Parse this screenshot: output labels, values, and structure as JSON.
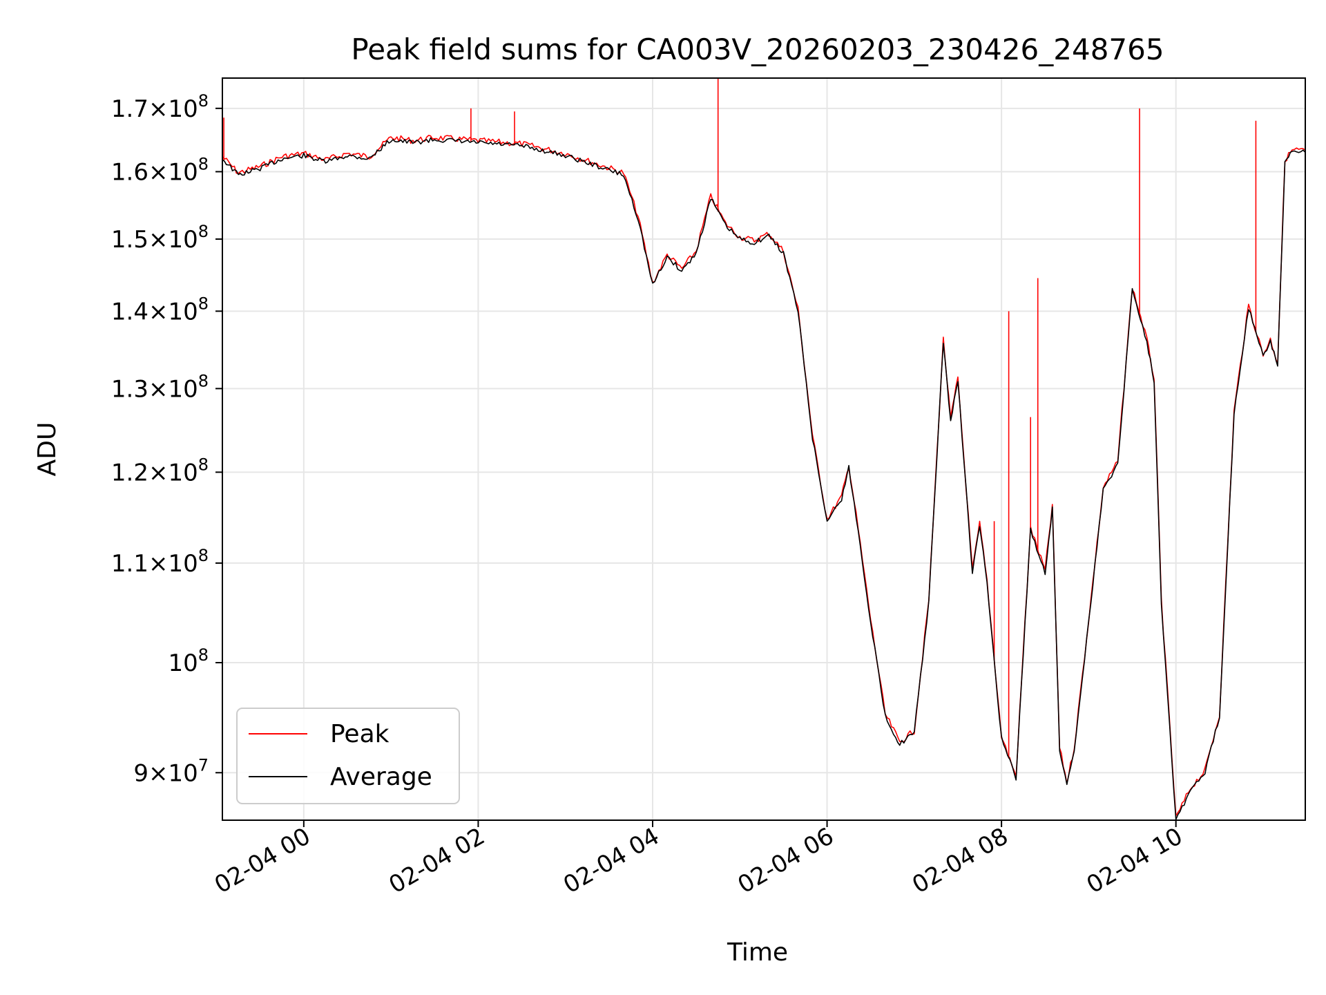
{
  "chart_data": {
    "type": "line",
    "title": "Peak field sums for CA003V_20260203_230426_248765",
    "xlabel": "Time",
    "ylabel": "ADU",
    "y_scale": "log",
    "ylim": [
      86000000,
      175000000
    ],
    "xlim": [
      "2026-02-03 23:04",
      "2026-02-04 11:29"
    ],
    "grid": true,
    "legend_position": "lower-left",
    "x_ticks": [
      {
        "value": "2026-02-04 00:00",
        "label": "02-04 00"
      },
      {
        "value": "2026-02-04 02:00",
        "label": "02-04 02"
      },
      {
        "value": "2026-02-04 04:00",
        "label": "02-04 04"
      },
      {
        "value": "2026-02-04 06:00",
        "label": "02-04 06"
      },
      {
        "value": "2026-02-04 08:00",
        "label": "02-04 08"
      },
      {
        "value": "2026-02-04 10:00",
        "label": "02-04 10"
      }
    ],
    "y_ticks": [
      {
        "value": 90000000,
        "mant": "9",
        "exp": "7"
      },
      {
        "value": 100000000,
        "mant": "",
        "exp": "8"
      },
      {
        "value": 110000000,
        "mant": "1.1",
        "exp": "8"
      },
      {
        "value": 120000000,
        "mant": "1.2",
        "exp": "8"
      },
      {
        "value": 130000000,
        "mant": "1.3",
        "exp": "8"
      },
      {
        "value": 140000000,
        "mant": "1.4",
        "exp": "8"
      },
      {
        "value": 150000000,
        "mant": "1.5",
        "exp": "8"
      },
      {
        "value": 160000000,
        "mant": "1.6",
        "exp": "8"
      },
      {
        "value": 170000000,
        "mant": "1.7",
        "exp": "8"
      }
    ],
    "series": [
      {
        "name": "Peak",
        "color": "#ff0000"
      },
      {
        "name": "Average",
        "color": "#000000"
      }
    ],
    "average_series": [
      [
        "2026-02-03 23:04",
        162000000
      ],
      [
        "2026-02-03 23:15",
        159500000
      ],
      [
        "2026-02-03 23:30",
        160500000
      ],
      [
        "2026-02-03 23:45",
        162000000
      ],
      [
        "2026-02-04 00:00",
        162500000
      ],
      [
        "2026-02-04 00:15",
        161500000
      ],
      [
        "2026-02-04 00:30",
        162500000
      ],
      [
        "2026-02-04 00:45",
        162000000
      ],
      [
        "2026-02-04 01:00",
        165000000
      ],
      [
        "2026-02-04 01:15",
        164500000
      ],
      [
        "2026-02-04 01:30",
        165000000
      ],
      [
        "2026-02-04 02:00",
        164500000
      ],
      [
        "2026-02-04 02:30",
        164000000
      ],
      [
        "2026-02-04 03:00",
        162500000
      ],
      [
        "2026-02-04 03:20",
        161000000
      ],
      [
        "2026-02-04 03:40",
        159500000
      ],
      [
        "2026-02-04 03:50",
        153000000
      ],
      [
        "2026-02-04 04:00",
        143500000
      ],
      [
        "2026-02-04 04:10",
        147500000
      ],
      [
        "2026-02-04 04:20",
        145500000
      ],
      [
        "2026-02-04 04:30",
        148000000
      ],
      [
        "2026-02-04 04:40",
        156000000
      ],
      [
        "2026-02-04 04:50",
        152000000
      ],
      [
        "2026-02-04 05:00",
        150000000
      ],
      [
        "2026-02-04 05:10",
        149500000
      ],
      [
        "2026-02-04 05:20",
        150500000
      ],
      [
        "2026-02-04 05:30",
        148000000
      ],
      [
        "2026-02-04 05:40",
        140000000
      ],
      [
        "2026-02-04 05:50",
        124000000
      ],
      [
        "2026-02-04 06:00",
        114500000
      ],
      [
        "2026-02-04 06:10",
        117000000
      ],
      [
        "2026-02-04 06:15",
        120500000
      ],
      [
        "2026-02-04 06:20",
        115000000
      ],
      [
        "2026-02-04 06:30",
        104000000
      ],
      [
        "2026-02-04 06:40",
        95000000
      ],
      [
        "2026-02-04 06:50",
        92500000
      ],
      [
        "2026-02-04 07:00",
        93500000
      ],
      [
        "2026-02-04 07:10",
        106000000
      ],
      [
        "2026-02-04 07:20",
        136000000
      ],
      [
        "2026-02-04 07:25",
        126000000
      ],
      [
        "2026-02-04 07:30",
        131000000
      ],
      [
        "2026-02-04 07:40",
        109000000
      ],
      [
        "2026-02-04 07:45",
        114000000
      ],
      [
        "2026-02-04 07:50",
        108000000
      ],
      [
        "2026-02-04 08:00",
        93000000
      ],
      [
        "2026-02-04 08:10",
        89500000
      ],
      [
        "2026-02-04 08:15",
        101000000
      ],
      [
        "2026-02-04 08:20",
        113500000
      ],
      [
        "2026-02-04 08:30",
        109000000
      ],
      [
        "2026-02-04 08:35",
        116000000
      ],
      [
        "2026-02-04 08:40",
        92000000
      ],
      [
        "2026-02-04 08:45",
        89000000
      ],
      [
        "2026-02-04 08:50",
        92000000
      ],
      [
        "2026-02-04 09:00",
        104000000
      ],
      [
        "2026-02-04 09:10",
        118000000
      ],
      [
        "2026-02-04 09:20",
        121000000
      ],
      [
        "2026-02-04 09:30",
        143000000
      ],
      [
        "2026-02-04 09:40",
        136000000
      ],
      [
        "2026-02-04 09:45",
        131000000
      ],
      [
        "2026-02-04 09:50",
        106000000
      ],
      [
        "2026-02-04 10:00",
        86000000
      ],
      [
        "2026-02-04 10:10",
        88500000
      ],
      [
        "2026-02-04 10:20",
        90000000
      ],
      [
        "2026-02-04 10:30",
        95000000
      ],
      [
        "2026-02-04 10:40",
        127000000
      ],
      [
        "2026-02-04 10:50",
        140500000
      ],
      [
        "2026-02-04 11:00",
        134000000
      ],
      [
        "2026-02-04 11:05",
        136000000
      ],
      [
        "2026-02-04 11:10",
        133000000
      ],
      [
        "2026-02-04 11:15",
        161500000
      ],
      [
        "2026-02-04 11:20",
        163000000
      ],
      [
        "2026-02-04 11:29",
        163000000
      ]
    ],
    "peak_spikes": [
      [
        "2026-02-03 23:05",
        168500000
      ],
      [
        "2026-02-04 01:55",
        170000000
      ],
      [
        "2026-02-04 02:25",
        169500000
      ],
      [
        "2026-02-04 04:45",
        175000000
      ],
      [
        "2026-02-04 07:55",
        114500000
      ],
      [
        "2026-02-04 08:05",
        140000000
      ],
      [
        "2026-02-04 08:20",
        126500000
      ],
      [
        "2026-02-04 08:25",
        144500000
      ],
      [
        "2026-02-04 09:35",
        170000000
      ],
      [
        "2026-02-04 10:55",
        168000000
      ]
    ]
  }
}
